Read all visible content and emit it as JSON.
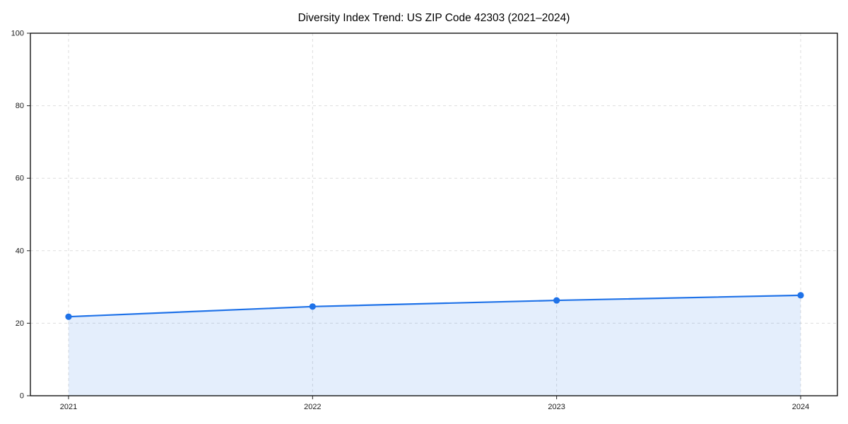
{
  "title": "Diversity Index Trend: US ZIP Code 42303 (2021–2024)",
  "chart_data": {
    "type": "line",
    "title": "Diversity Index Trend: US ZIP Code 42303 (2021–2024)",
    "x": [
      2021,
      2022,
      2023,
      2024
    ],
    "xticks": [
      "2021",
      "2022",
      "2023",
      "2024"
    ],
    "series": [
      {
        "name": "Diversity Index",
        "values": [
          21.8,
          24.6,
          26.3,
          27.7
        ]
      }
    ],
    "xlabel": "",
    "ylabel": "",
    "ylim": [
      0,
      100
    ],
    "yticks": [
      0,
      20,
      40,
      60,
      80,
      100
    ],
    "grid": true,
    "grid_style": "dashed",
    "legend": "none",
    "marker": "circle",
    "area_fill": true,
    "colors": {
      "line": "#1f72e8",
      "marker": "#1f72e8",
      "area": "rgba(31,114,232,0.12)",
      "gridline": "#dddddd",
      "spine": "#000000",
      "tick": "#222222",
      "background": "#ffffff"
    }
  }
}
